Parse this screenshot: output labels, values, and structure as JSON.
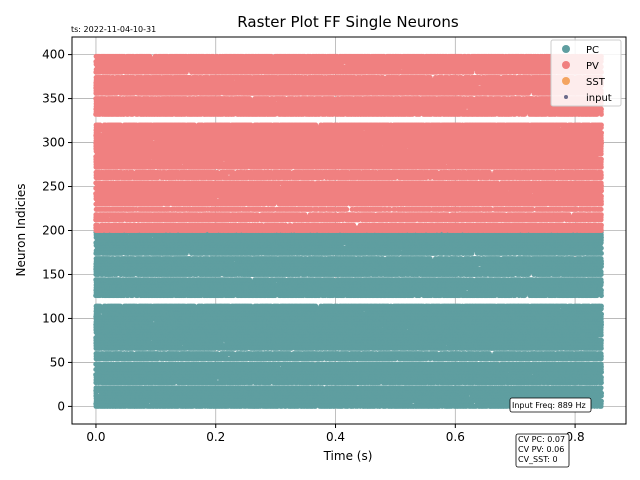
{
  "timestamp": "ts: 2022-11-04-10-31",
  "chart_data": {
    "type": "scatter",
    "title": "Raster Plot FF Single Neurons",
    "xlabel": "Time (s)",
    "ylabel": "Neuron Indicies",
    "xlim": [
      -0.04,
      0.885
    ],
    "ylim": [
      -20,
      420
    ],
    "xticks": [
      0.0,
      0.2,
      0.4,
      0.6,
      0.8
    ],
    "xtick_labels": [
      "0.0",
      "0.2",
      "0.4",
      "0.6",
      "0.8"
    ],
    "yticks": [
      0,
      50,
      100,
      150,
      200,
      250,
      300,
      350,
      400
    ],
    "ytick_labels": [
      "0",
      "50",
      "100",
      "150",
      "200",
      "250",
      "300",
      "350",
      "400"
    ],
    "grid": true,
    "legend_position": "top-right",
    "series": [
      {
        "name": "PC",
        "color": "#5f9ea0",
        "neuron_range": [
          0,
          200
        ],
        "time_range": [
          0.0,
          0.845
        ]
      },
      {
        "name": "PV",
        "color": "#f08080",
        "neuron_range": [
          200,
          400
        ],
        "time_range": [
          0.0,
          0.845
        ]
      },
      {
        "name": "SST",
        "color": "#f4a460",
        "neuron_range": [],
        "time_range": []
      },
      {
        "name": "input",
        "color": "#6b6b8a",
        "neuron_range": [],
        "time_range": []
      }
    ],
    "annotations": {
      "input_freq": "Input Freq: 889 Hz",
      "cv_lines": [
        "CV PC: 0.07",
        "CV PV: 0.06",
        "CV_SST: 0"
      ]
    }
  }
}
